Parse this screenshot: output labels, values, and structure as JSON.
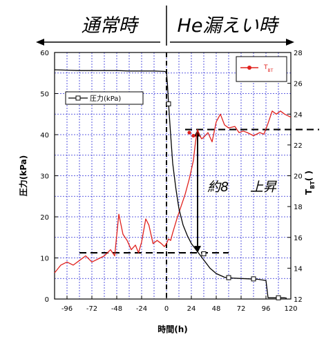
{
  "chart_data": {
    "type": "line",
    "labels": {
      "normal": "通常時",
      "leak": "He漏えい時",
      "rise": "約8",
      "rise2": "上昇"
    },
    "xlabel": "時間(h)",
    "ylabel_left": "圧力(kPa)",
    "ylabel_right_main": "T",
    "ylabel_right_sub": "BT",
    "ylabel_right_paren": "(  )",
    "xlim": [
      -108,
      120
    ],
    "x_ticks": [
      "-96",
      "-72",
      "-48",
      "-24",
      "0",
      "24",
      "48",
      "72",
      "96",
      "120"
    ],
    "x_tick_values": [
      -96,
      -72,
      -48,
      -24,
      0,
      24,
      48,
      72,
      96,
      120
    ],
    "ylim_left": [
      0,
      60
    ],
    "y_ticks_left": [
      "0",
      "10",
      "20",
      "30",
      "40",
      "50",
      "60"
    ],
    "ylim_right": [
      12,
      28
    ],
    "y_ticks_right": [
      "12",
      "14",
      "16",
      "18",
      "20",
      "22",
      "24",
      "26",
      "28"
    ],
    "grid": true,
    "legend_position": "inside",
    "colors": {
      "pressure": "#000000",
      "temperature": "#e0201c",
      "grid": "#2a2ad8"
    },
    "series": [
      {
        "name": "圧力(kPa)",
        "axis": "left",
        "x": [
          -108,
          -96,
          -84,
          -72,
          -60,
          -48,
          -36,
          -24,
          -12,
          -2,
          0,
          1,
          2,
          4,
          6,
          9,
          12,
          16,
          20,
          24,
          30,
          36,
          42,
          48,
          56,
          64,
          72,
          80,
          88,
          96,
          98,
          104,
          114,
          116
        ],
        "y": [
          55.8,
          55.7,
          55.6,
          55.6,
          55.6,
          55.6,
          55.5,
          55.5,
          55.5,
          55.4,
          55.2,
          52,
          47.5,
          40,
          33,
          27,
          22,
          18,
          15.5,
          13.5,
          11.5,
          9.5,
          7.5,
          6.2,
          5.3,
          5.1,
          5,
          4.9,
          4.8,
          4.5,
          0.3,
          0.3,
          0.3,
          0.2
        ]
      },
      {
        "name": "T_BT",
        "axis": "right",
        "x": [
          -108,
          -102,
          -96,
          -90,
          -84,
          -78,
          -72,
          -66,
          -60,
          -54,
          -50,
          -46,
          -42,
          -38,
          -34,
          -30,
          -27,
          -24,
          -20,
          -17,
          -13,
          -9,
          -5,
          -2,
          0,
          2,
          4,
          6,
          10,
          14,
          18,
          22,
          26,
          28,
          30,
          32,
          34,
          36,
          40,
          44,
          48,
          52,
          56,
          60,
          66,
          70,
          74,
          78,
          84,
          90,
          94,
          98,
          102,
          106,
          110,
          114,
          120
        ],
        "y": [
          13.7,
          14.2,
          14.4,
          14.2,
          14.5,
          14.8,
          14.4,
          14.6,
          14.8,
          15.2,
          14.8,
          17.5,
          16.2,
          15.8,
          15.2,
          15.5,
          15.0,
          15.7,
          17.2,
          16.8,
          15.6,
          15.8,
          15.6,
          15.4,
          15.6,
          15.9,
          15.8,
          16.3,
          17.2,
          18.0,
          18.8,
          19.8,
          21.0,
          22.2,
          23.0,
          22.6,
          22.4,
          22.5,
          22.8,
          22.2,
          23.5,
          24.0,
          23.3,
          23.1,
          23.2,
          22.8,
          22.9,
          22.8,
          22.6,
          22.8,
          22.7,
          23.4,
          24.2,
          24.0,
          24.2,
          24.0,
          23.8
        ]
      }
    ]
  }
}
